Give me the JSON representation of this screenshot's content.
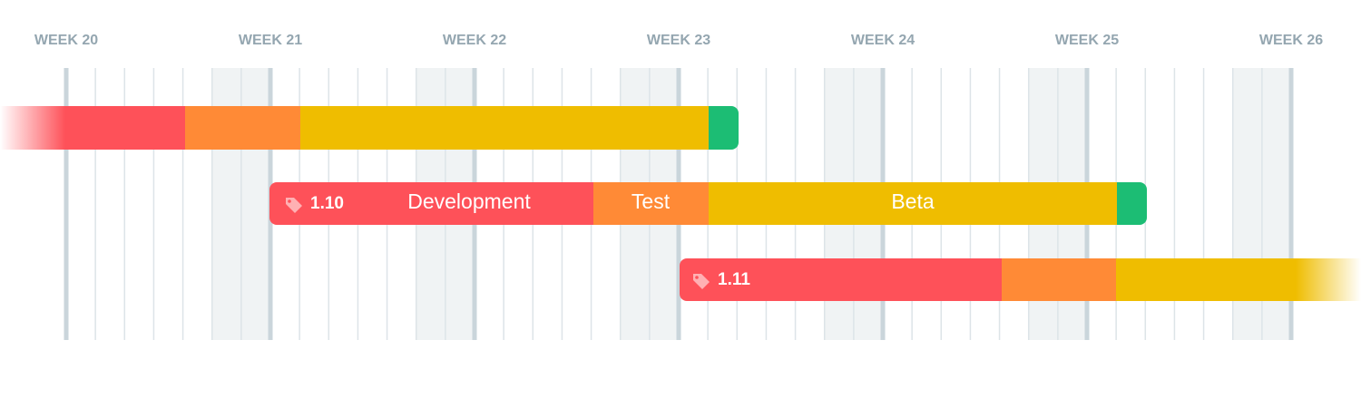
{
  "weeks": [
    "WEEK 20",
    "WEEK 21",
    "WEEK 22",
    "WEEK 23",
    "WEEK 24",
    "WEEK 25",
    "WEEK 26"
  ],
  "releases": [
    {
      "version": "1.10",
      "phases": [
        "Development",
        "Test",
        "Beta"
      ]
    },
    {
      "version": "1.11"
    }
  ]
}
